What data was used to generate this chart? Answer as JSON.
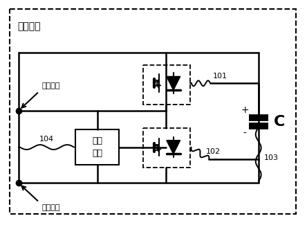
{
  "title": "开关模块",
  "background_color": "#ffffff",
  "high_terminal_label": "高电位端",
  "low_terminal_label": "低电位端",
  "bypass_label_1": "旁开",
  "bypass_label_2": "模块",
  "label_101": "101",
  "label_102": "102",
  "label_103": "103",
  "label_104": "104",
  "cap_label": "C",
  "cap_plus": "+",
  "cap_minus": "-"
}
